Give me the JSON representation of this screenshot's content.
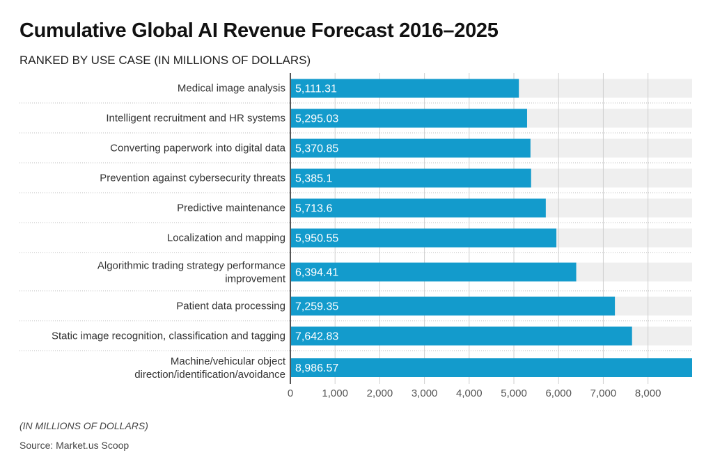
{
  "chart_data": {
    "type": "bar",
    "orientation": "horizontal",
    "title": "Cumulative Global AI Revenue Forecast 2016–2025",
    "subtitle": "RANKED BY USE CASE (IN MILLIONS OF DOLLARS)",
    "categories": [
      "Medical image analysis",
      "Intelligent recruitment and HR systems",
      "Converting paperwork into digital data",
      "Prevention against cybersecurity threats",
      "Predictive maintenance",
      "Localization and mapping",
      "Algorithmic trading strategy performance improvement",
      "Patient data processing",
      "Static image recognition, classification and tagging",
      "Machine/vehicular object direction/identification/avoidance"
    ],
    "values": [
      5111.31,
      5295.03,
      5370.85,
      5385.1,
      5713.6,
      5950.55,
      6394.41,
      7259.35,
      7642.83,
      8986.57
    ],
    "data_labels": [
      "5,111.31",
      "5,295.03",
      "5,370.85",
      "5,385.1",
      "5,713.6",
      "5,950.55",
      "6,394.41",
      "7,259.35",
      "7,642.83",
      "8,986.57"
    ],
    "xlim": [
      0,
      8986.57
    ],
    "xticks": [
      0,
      1000,
      2000,
      3000,
      4000,
      5000,
      6000,
      7000,
      8000
    ],
    "xtick_labels": [
      "0",
      "1,000",
      "2,000",
      "3,000",
      "4,000",
      "5,000",
      "6,000",
      "7,000",
      "8,000"
    ],
    "grid": true,
    "colors": {
      "bar": "#139bcc",
      "track": "#efefef",
      "text": "#333333"
    }
  },
  "footer": {
    "note": "(IN MILLIONS OF DOLLARS)",
    "source": "Source: Market.us Scoop"
  }
}
